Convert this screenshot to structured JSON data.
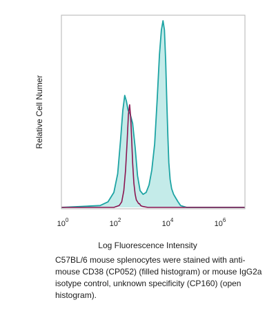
{
  "chart_data": {
    "type": "area",
    "title": "",
    "xlabel": "Log Fluorescence Intensity",
    "ylabel": "Relative Cell Numer",
    "x_scale": "log",
    "xlim": [
      1,
      10000000
    ],
    "ylim": [
      0,
      1
    ],
    "grid": false,
    "x_ticks": [
      {
        "base": "10",
        "exp": "0",
        "value": 1
      },
      {
        "base": "10",
        "exp": "2",
        "value": 100
      },
      {
        "base": "10",
        "exp": "4",
        "value": 10000
      },
      {
        "base": "10",
        "exp": "6",
        "value": 1000000
      }
    ],
    "series": [
      {
        "style": "filled",
        "color": "#1ca3a3",
        "fill": "#c4ebe9",
        "x": [
          1,
          30,
          60,
          100,
          140,
          180,
          220,
          260,
          300,
          350,
          420,
          520,
          650,
          800,
          1000,
          1300,
          1700,
          2200,
          2800,
          3600,
          4500,
          5500,
          6500,
          7500,
          8500,
          9500,
          10500,
          11500,
          12500,
          14000,
          16000,
          19000,
          23000,
          28000,
          35000,
          45000,
          60000,
          100000,
          1000000,
          10000000
        ],
        "y": [
          0.0,
          0.01,
          0.03,
          0.08,
          0.18,
          0.36,
          0.52,
          0.6,
          0.57,
          0.52,
          0.5,
          0.45,
          0.32,
          0.17,
          0.09,
          0.07,
          0.08,
          0.12,
          0.2,
          0.34,
          0.58,
          0.82,
          0.95,
          1.0,
          0.95,
          0.78,
          0.56,
          0.38,
          0.24,
          0.15,
          0.1,
          0.07,
          0.05,
          0.03,
          0.01,
          0.005,
          0.0,
          0.0,
          0.0,
          0.0
        ]
      },
      {
        "style": "open",
        "color": "#8a1450",
        "x": [
          1,
          100,
          160,
          200,
          240,
          280,
          320,
          360,
          400,
          440,
          480,
          520,
          580,
          650,
          720,
          800,
          880,
          950,
          1050,
          1200,
          1500,
          2000,
          10000000
        ],
        "y": [
          0.0,
          0.0,
          0.01,
          0.03,
          0.09,
          0.2,
          0.35,
          0.5,
          0.55,
          0.48,
          0.36,
          0.24,
          0.13,
          0.07,
          0.04,
          0.03,
          0.02,
          0.02,
          0.01,
          0.006,
          0.003,
          0.0,
          0.0
        ]
      }
    ]
  },
  "caption": {
    "text": "C57BL/6 mouse splenocytes were stained with anti-mouse CD38 (CP052) (filled histogram) or mouse IgG2a isotype control, unknown specificity (CP160) (open histogram)."
  }
}
